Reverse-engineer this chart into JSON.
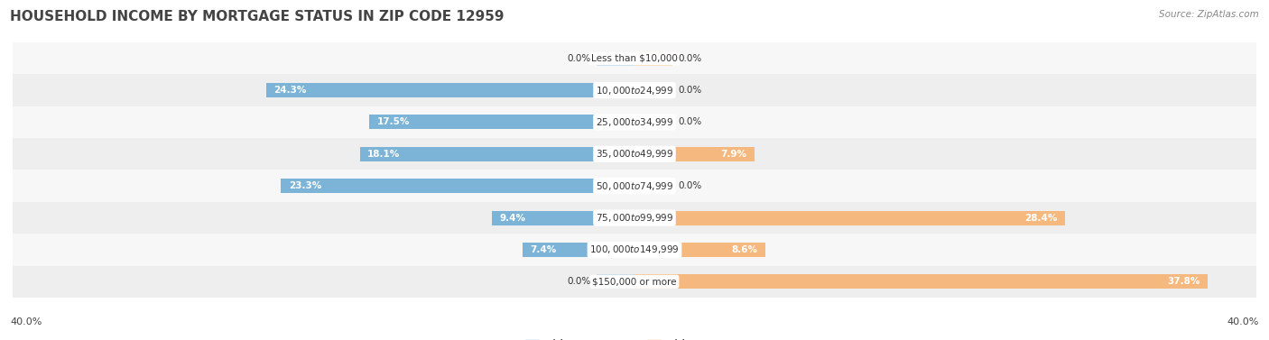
{
  "title": "HOUSEHOLD INCOME BY MORTGAGE STATUS IN ZIP CODE 12959",
  "source": "Source: ZipAtlas.com",
  "categories": [
    "Less than $10,000",
    "$10,000 to $24,999",
    "$25,000 to $34,999",
    "$35,000 to $49,999",
    "$50,000 to $74,999",
    "$75,000 to $99,999",
    "$100,000 to $149,999",
    "$150,000 or more"
  ],
  "without_mortgage": [
    0.0,
    24.3,
    17.5,
    18.1,
    23.3,
    9.4,
    7.4,
    0.0
  ],
  "with_mortgage": [
    0.0,
    0.0,
    0.0,
    7.9,
    0.0,
    28.4,
    8.6,
    37.8
  ],
  "blue_color": "#7cb4d8",
  "blue_stub_color": "#b8d4e8",
  "orange_color": "#f5b97f",
  "orange_stub_color": "#f5d4b0",
  "axis_max": 40.0,
  "title_fontsize": 11,
  "label_fontsize": 7.5,
  "tick_fontsize": 8,
  "legend_fontsize": 8.5,
  "source_fontsize": 7.5,
  "bar_height": 0.45,
  "stub_val": 2.5,
  "row_colors": [
    "#f7f7f7",
    "#eeeeee"
  ],
  "inside_label_threshold": 5.0
}
